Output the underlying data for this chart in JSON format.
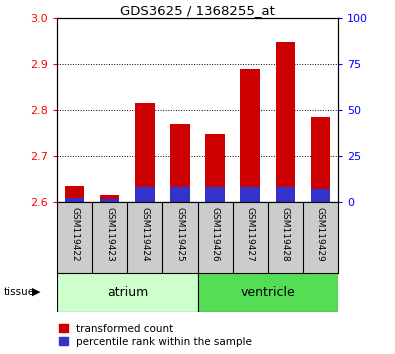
{
  "title": "GDS3625 / 1368255_at",
  "samples": [
    "GSM119422",
    "GSM119423",
    "GSM119424",
    "GSM119425",
    "GSM119426",
    "GSM119427",
    "GSM119428",
    "GSM119429"
  ],
  "transformed_count": [
    2.635,
    2.615,
    2.815,
    2.77,
    2.748,
    2.888,
    2.948,
    2.785
  ],
  "percentile_rank_pct": [
    2.0,
    1.5,
    8.0,
    8.0,
    8.0,
    8.0,
    8.0,
    7.0
  ],
  "baseline": 2.6,
  "ylim": [
    2.6,
    3.0
  ],
  "yticks_left": [
    2.6,
    2.7,
    2.8,
    2.9,
    3.0
  ],
  "yticks_right": [
    0,
    25,
    50,
    75,
    100
  ],
  "bar_color_red": "#cc0000",
  "bar_color_blue": "#3333cc",
  "atrium_color": "#ccffcc",
  "ventricle_color": "#55dd55",
  "tissue_label_atrium": "atrium",
  "tissue_label_ventricle": "ventricle",
  "legend_red": "transformed count",
  "legend_blue": "percentile rank within the sample",
  "plot_bg_color": "#ffffff"
}
